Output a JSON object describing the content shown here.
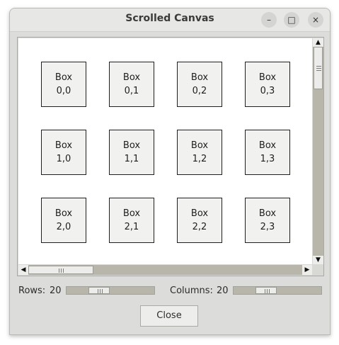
{
  "window": {
    "title": "Scrolled Canvas"
  },
  "titlebar_buttons": {
    "minimize": "–",
    "maximize": "□",
    "close": "×"
  },
  "grid": [
    [
      "Box",
      "0,0"
    ],
    [
      "Box",
      "0,1"
    ],
    [
      "Box",
      "0,2"
    ],
    [
      "Box",
      "0,3"
    ],
    [
      "Box",
      "1,0"
    ],
    [
      "Box",
      "1,1"
    ],
    [
      "Box",
      "1,2"
    ],
    [
      "Box",
      "1,3"
    ],
    [
      "Box",
      "2,0"
    ],
    [
      "Box",
      "2,1"
    ],
    [
      "Box",
      "2,2"
    ],
    [
      "Box",
      "2,3"
    ]
  ],
  "controls": {
    "rows_label": "Rows:",
    "rows_value": "20",
    "columns_label": "Columns:",
    "columns_value": "20",
    "close_label": "Close"
  },
  "scroll_icons": {
    "up": "▲",
    "down": "▼",
    "left": "◀",
    "right": "▶"
  }
}
